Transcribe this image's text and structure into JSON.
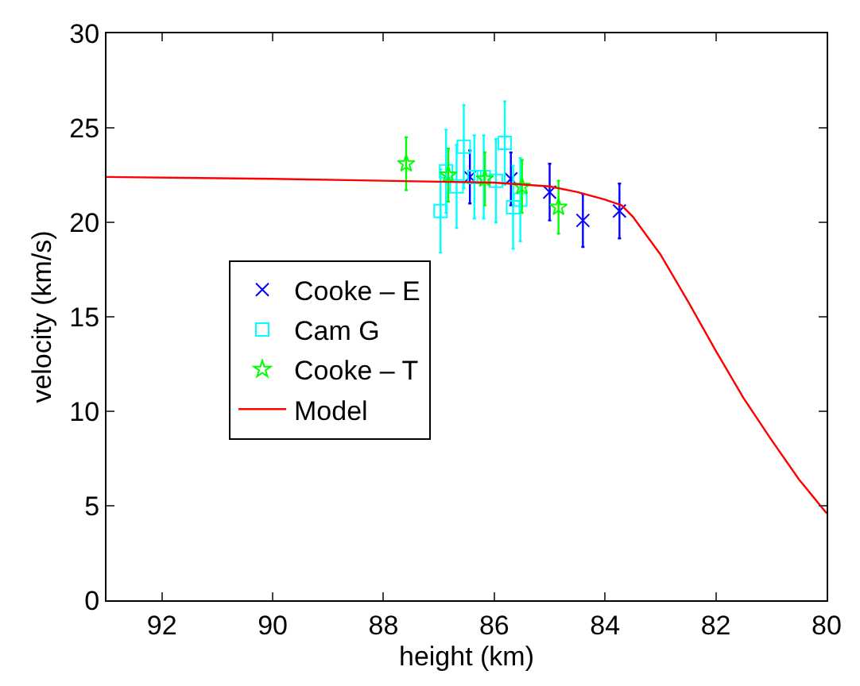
{
  "chart_data": {
    "type": "scatter",
    "xlabel": "height (km)",
    "ylabel": "velocity (km/s)",
    "xlim": [
      93,
      80
    ],
    "xticks": [
      92,
      90,
      88,
      86,
      84,
      82,
      80
    ],
    "ylim": [
      0,
      30
    ],
    "yticks": [
      0,
      5,
      10,
      15,
      20,
      25,
      30
    ],
    "legend": "left",
    "series": [
      {
        "name": "Cooke – E",
        "color": "#0000ff",
        "marker": "cross",
        "x": [
          86.44,
          85.7,
          85.0,
          84.4,
          83.74
        ],
        "values": [
          22.4,
          22.3,
          21.6,
          20.1,
          20.6
        ],
        "errors": [
          1.4,
          1.4,
          1.5,
          1.4,
          1.45
        ]
      },
      {
        "name": "Cam G",
        "color": "#00ffff",
        "marker": "square",
        "x": [
          86.97,
          86.87,
          86.68,
          86.55,
          86.36,
          86.19,
          85.97,
          85.81,
          85.66,
          85.53
        ],
        "values": [
          20.6,
          22.7,
          21.9,
          24.0,
          22.4,
          22.4,
          22.2,
          24.2,
          20.8,
          21.2
        ],
        "errors": [
          2.2,
          2.2,
          2.2,
          2.2,
          2.2,
          2.2,
          2.2,
          2.2,
          2.2,
          2.2
        ]
      },
      {
        "name": "Cooke – T",
        "color": "#00ff00",
        "marker": "star",
        "x": [
          87.59,
          86.83,
          86.17,
          85.5,
          84.84
        ],
        "values": [
          23.1,
          22.5,
          22.3,
          21.9,
          20.8
        ],
        "errors": [
          1.4,
          1.4,
          1.4,
          1.4,
          1.4
        ]
      },
      {
        "name": "Model",
        "type": "line",
        "color": "#ff0000",
        "marker": "none",
        "line_style": "solid",
        "x": [
          93,
          90,
          88,
          86,
          85,
          84.5,
          84,
          83.7,
          83.5,
          83,
          82.5,
          82,
          81.5,
          81,
          80.5,
          80
        ],
        "values": [
          22.4,
          22.3,
          22.2,
          22.1,
          21.9,
          21.6,
          21.2,
          20.9,
          20.3,
          18.3,
          15.8,
          13.2,
          10.7,
          8.5,
          6.4,
          4.6
        ]
      }
    ]
  }
}
